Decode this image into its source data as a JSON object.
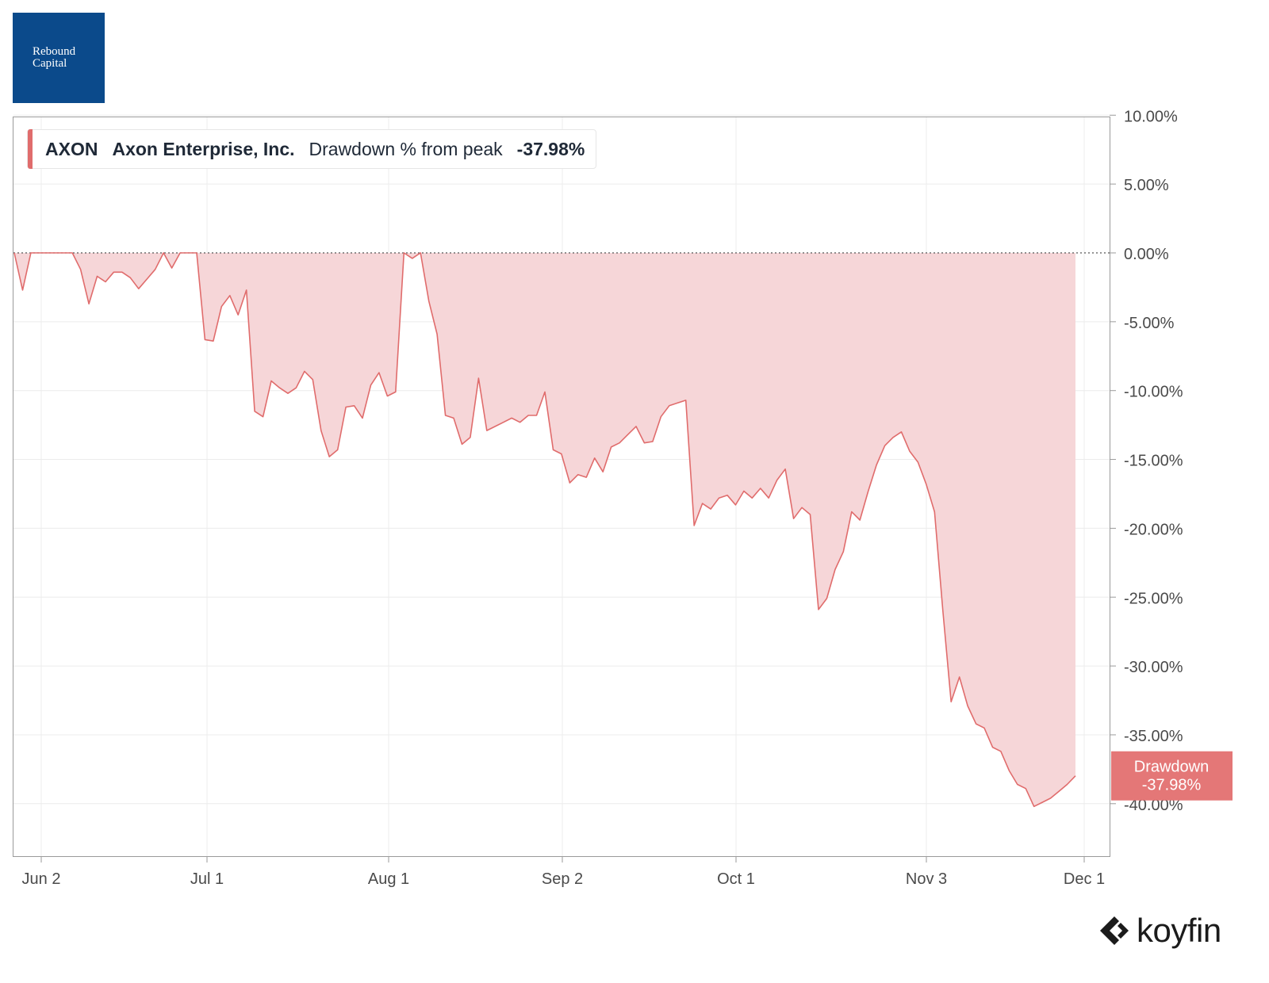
{
  "brand": {
    "logo_line1": "Rebound",
    "logo_line2": "Capital",
    "logo_color": "#0b4a8b",
    "watermark": "koyfin"
  },
  "legend": {
    "ticker": "AXON",
    "company": "Axon Enterprise, Inc.",
    "metric": "Drawdown % from peak",
    "value": "-37.98%"
  },
  "price_tag": {
    "label": "Drawdown",
    "value": "-37.98%",
    "color": "#e47777"
  },
  "chart_data": {
    "type": "area",
    "title": "",
    "xlabel": "",
    "ylabel": "",
    "ylim": [
      -43,
      10
    ],
    "y_ticks": [
      10,
      5,
      0,
      -5,
      -10,
      -15,
      -20,
      -25,
      -30,
      -35,
      -40
    ],
    "y_tick_labels": [
      "10.00%",
      "5.00%",
      "0.00%",
      "-5.00%",
      "-10.00%",
      "-15.00%",
      "-20.00%",
      "-25.00%",
      "-30.00%",
      "-35.00%",
      "-40.00%"
    ],
    "x_ticks": [
      "Jun 2",
      "Jul 1",
      "Aug 1",
      "Sep 2",
      "Oct 1",
      "Nov 3",
      "Dec 1"
    ],
    "grid": true,
    "line_color": "#e06c6c",
    "fill_color": "#f6d6d8",
    "zero_line": "dotted",
    "series": [
      {
        "values": [
          0,
          -2.7,
          0,
          0,
          0,
          0,
          0,
          0,
          -1.2,
          -3.7,
          -1.7,
          -2.1,
          -1.4,
          -1.4,
          -1.8,
          -2.6,
          -1.9,
          -1.2,
          0,
          -1.1,
          0,
          0,
          0,
          -6.3,
          -6.4,
          -3.9,
          -3.1,
          -4.5,
          -2.7,
          -11.5,
          -11.9,
          -9.3,
          -9.8,
          -10.2,
          -9.8,
          -8.6,
          -9.2,
          -12.9,
          -14.8,
          -14.3,
          -11.2,
          -11.1,
          -12.0,
          -9.6,
          -8.7,
          -10.4,
          -10.1,
          0,
          -0.4,
          0,
          -3.5,
          -5.9,
          -11.8,
          -12.0,
          -13.9,
          -13.4,
          -9.1,
          -12.9,
          -12.6,
          -12.3,
          -12.0,
          -12.3,
          -11.8,
          -11.8,
          -10.1,
          -14.3,
          -14.6,
          -16.7,
          -16.1,
          -16.3,
          -14.9,
          -15.9,
          -14.1,
          -13.8,
          -13.2,
          -12.6,
          -13.8,
          -13.7,
          -11.9,
          -11.1,
          -10.9,
          -10.7,
          -19.8,
          -18.2,
          -18.6,
          -17.8,
          -17.6,
          -18.3,
          -17.3,
          -17.8,
          -17.1,
          -17.8,
          -16.5,
          -15.7,
          -19.3,
          -18.5,
          -19.0,
          -25.9,
          -25.1,
          -23.0,
          -21.7,
          -18.8,
          -19.4,
          -17.3,
          -15.4,
          -14.0,
          -13.4,
          -13.0,
          -14.4,
          -15.2,
          -16.8,
          -18.8,
          -26.0,
          -32.6,
          -30.8,
          -32.9,
          -34.2,
          -34.5,
          -35.9,
          -36.2,
          -37.6,
          -38.6,
          -38.9,
          -40.2,
          -39.9,
          -39.6,
          -39.1,
          -38.6,
          -37.98
        ]
      }
    ]
  }
}
